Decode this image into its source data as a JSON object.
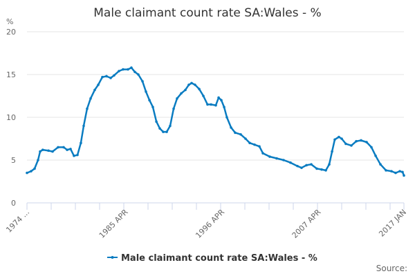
{
  "chart_data": {
    "type": "line",
    "title": "Male claimant count rate SA:Wales - %",
    "ylabel": "%",
    "xlabel": "",
    "ylim": [
      0,
      20
    ],
    "yticks": [
      "0",
      "5",
      "10",
      "15",
      "20"
    ],
    "xlim": [
      1974.0,
      2017.0
    ],
    "xtick_labels": [
      {
        "label": "1974 ...",
        "x": 1974.0
      },
      {
        "label": "1985 APR",
        "x": 1985.25
      },
      {
        "label": "1996 APR",
        "x": 1996.25
      },
      {
        "label": "2007 APR",
        "x": 2007.25
      },
      {
        "label": "2017 JAN",
        "x": 2017.0
      }
    ],
    "grid": true,
    "legend_position": "bottom",
    "source_label": "Source:",
    "color": "#0a7cc1",
    "series": [
      {
        "name": "Male claimant count rate SA:Wales - %",
        "x": [
          1974.0,
          1974.47,
          1974.87,
          1975.26,
          1975.5,
          1975.8,
          1976.45,
          1976.92,
          1977.55,
          1978.18,
          1978.58,
          1978.97,
          1979.36,
          1979.76,
          1980.15,
          1980.47,
          1980.86,
          1981.26,
          1981.73,
          1982.13,
          1982.6,
          1983.07,
          1983.55,
          1983.94,
          1984.49,
          1984.96,
          1985.52,
          1985.91,
          1986.31,
          1986.7,
          1987.18,
          1987.57,
          1987.97,
          1988.36,
          1988.76,
          1989.15,
          1989.54,
          1989.94,
          1990.33,
          1990.73,
          1991.12,
          1991.6,
          1992.07,
          1992.46,
          1992.78,
          1993.17,
          1993.65,
          1994.12,
          1994.59,
          1994.99,
          1995.54,
          1995.86,
          1996.17,
          1996.49,
          1996.8,
          1997.28,
          1997.75,
          1998.38,
          1998.93,
          1999.41,
          1999.96,
          2000.51,
          2000.91,
          2001.69,
          2002.48,
          2003.27,
          2004.06,
          2004.85,
          2005.32,
          2005.88,
          2006.43,
          2007.06,
          2007.61,
          2008.09,
          2008.48,
          2008.8,
          2009.11,
          2009.58,
          2009.9,
          2010.37,
          2011.0,
          2011.56,
          2012.11,
          2012.74,
          2013.29,
          2013.77,
          2014.32,
          2014.95,
          2015.58,
          2016.05,
          2016.53,
          2016.84,
          2017.0
        ],
        "values": [
          3.5,
          3.7,
          4.0,
          5.0,
          6.0,
          6.2,
          6.1,
          6.0,
          6.5,
          6.5,
          6.2,
          6.3,
          5.5,
          5.6,
          7.0,
          9.0,
          11.0,
          12.2,
          13.2,
          13.8,
          14.7,
          14.8,
          14.6,
          14.9,
          15.4,
          15.6,
          15.6,
          15.8,
          15.3,
          15.0,
          14.2,
          13.0,
          12.0,
          11.2,
          9.5,
          8.7,
          8.3,
          8.3,
          9.0,
          11.0,
          12.2,
          12.8,
          13.2,
          13.8,
          14.0,
          13.8,
          13.3,
          12.5,
          11.5,
          11.5,
          11.4,
          12.3,
          12.0,
          11.2,
          10.0,
          8.8,
          8.2,
          8.0,
          7.5,
          7.0,
          6.8,
          6.6,
          5.8,
          5.4,
          5.2,
          5.0,
          4.7,
          4.3,
          4.1,
          4.4,
          4.5,
          4.0,
          3.9,
          3.8,
          4.5,
          6.0,
          7.4,
          7.7,
          7.5,
          6.9,
          6.7,
          7.2,
          7.3,
          7.1,
          6.5,
          5.5,
          4.5,
          3.8,
          3.7,
          3.5,
          3.7,
          3.6,
          3.2
        ]
      }
    ]
  }
}
